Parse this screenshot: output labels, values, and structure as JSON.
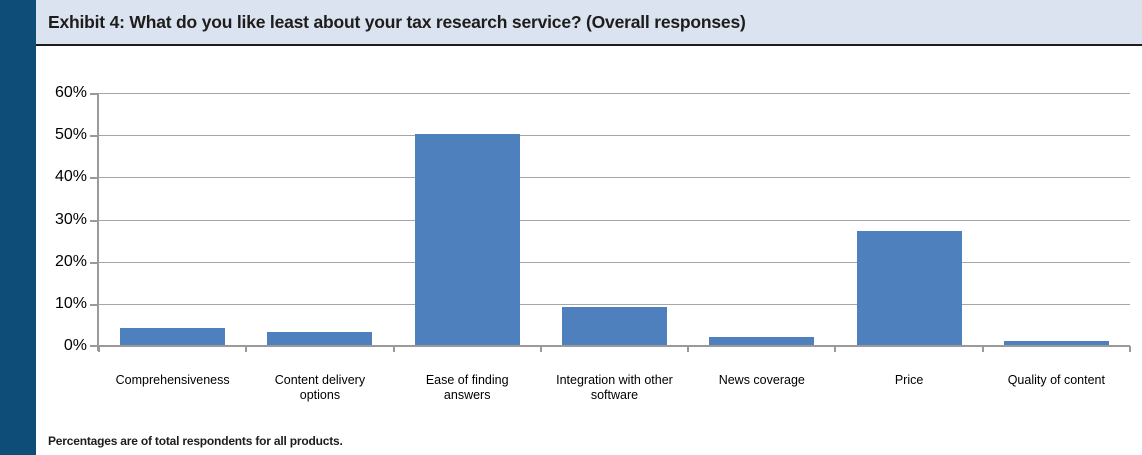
{
  "header": {
    "title": "Exhibit 4: What do you like least about your tax research service? (Overall responses)"
  },
  "footnote": "Percentages are of total respondents for all products.",
  "colors": {
    "accent_stripe": "#0E4D78",
    "header_bg": "#DCE3F0",
    "header_rule": "#1D1D1B",
    "bar": "#4E80BE",
    "grid": "#A6A6A6",
    "axis": "#9A9A9A"
  },
  "chart_data": {
    "type": "bar",
    "title": "Exhibit 4: What do you like least about your tax research service? (Overall responses)",
    "categories": [
      "Comprehensiveness",
      "Content delivery options",
      "Ease of finding answers",
      "Integration with other software",
      "News coverage",
      "Price",
      "Quality of content"
    ],
    "values": [
      4,
      3,
      50,
      9,
      2,
      27,
      1
    ],
    "unit": "%",
    "xlabel": "",
    "ylabel": "",
    "ylim": [
      0,
      60
    ],
    "yticks": [
      0,
      10,
      20,
      30,
      40,
      50,
      60
    ],
    "ytick_labels": [
      "0%",
      "10%",
      "20%",
      "30%",
      "40%",
      "50%",
      "60%"
    ],
    "grid": true,
    "legend_position": "none",
    "bar_color": "#4E80BE",
    "footnote": "Percentages are of total respondents for all products."
  }
}
